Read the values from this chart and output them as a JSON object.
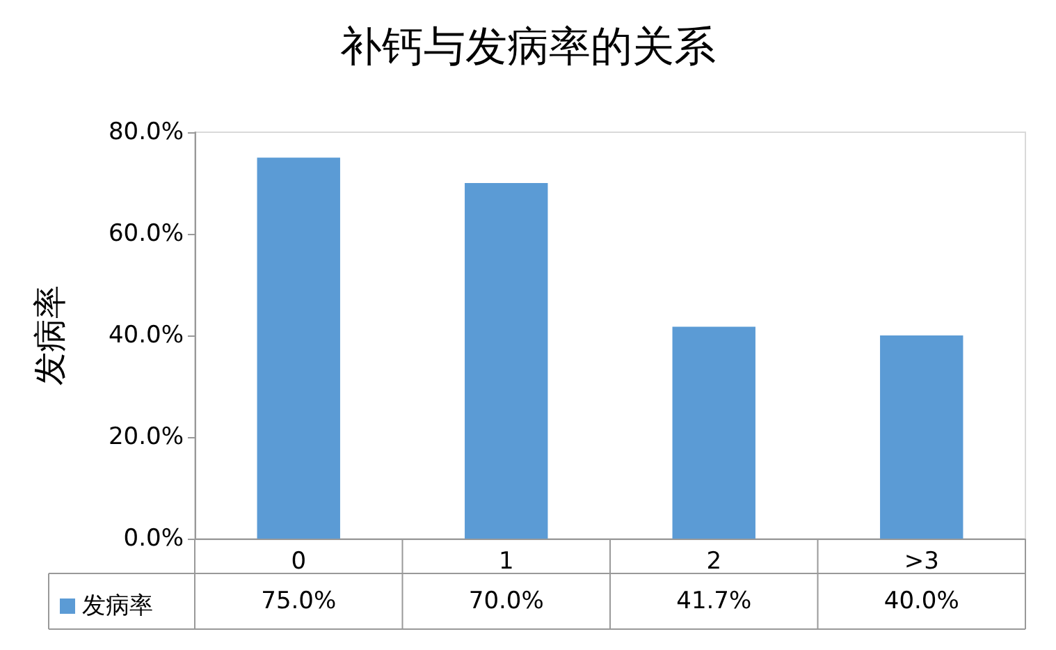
{
  "chart_data": {
    "type": "bar",
    "title": "补钙与发病率的关系",
    "ylabel": "发病率",
    "categories": [
      "0",
      "1",
      "2",
      ">3"
    ],
    "series": [
      {
        "name": "发病率",
        "color": "#5b9bd5",
        "values": [
          75.0,
          70.0,
          41.7,
          40.0
        ]
      }
    ],
    "ylim": [
      0,
      80
    ],
    "yticks": [
      {
        "value": 0,
        "label": "0.0%"
      },
      {
        "value": 20,
        "label": "20.0%"
      },
      {
        "value": 40,
        "label": "40.0%"
      },
      {
        "value": 60,
        "label": "60.0%"
      },
      {
        "value": 80,
        "label": "80.0%"
      }
    ],
    "value_labels": [
      "75.0%",
      "70.0%",
      "41.7%",
      "40.0%"
    ],
    "legend": "bottom left"
  }
}
